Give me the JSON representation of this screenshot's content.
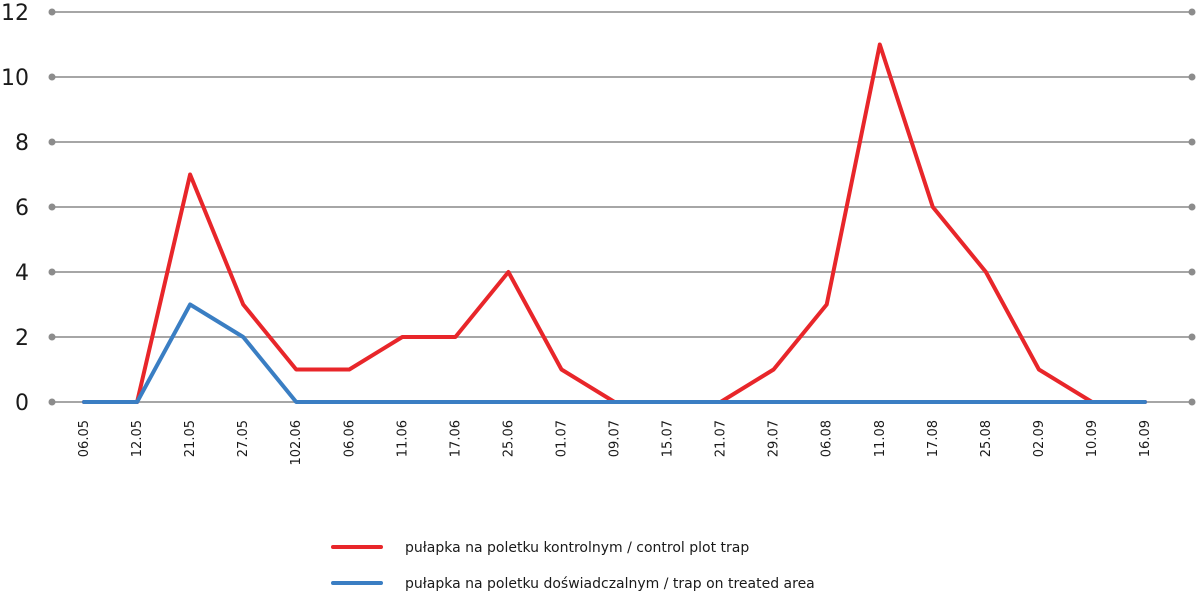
{
  "chart_data": {
    "type": "line",
    "x": [
      "06.05",
      "12.05",
      "21.05",
      "27.05",
      "102.06",
      "06.06",
      "11.06",
      "17.06",
      "25.06",
      "01.07",
      "09.07",
      "15.07",
      "21.07",
      "29.07",
      "06.08",
      "11.08",
      "17.08",
      "25.08",
      "02.09",
      "10.09",
      "16.09"
    ],
    "yticks": [
      0,
      2,
      4,
      6,
      8,
      10,
      12
    ],
    "ylim": [
      0,
      12
    ],
    "grid": true,
    "legend_position": "bottom-center",
    "series": [
      {
        "name": "pułapka na poletku kontrolnym / control plot trap",
        "color": "#e8262a",
        "values": [
          0,
          0,
          7,
          3,
          1,
          1,
          2,
          2,
          4,
          1,
          0,
          0,
          0,
          1,
          3,
          11,
          6,
          4,
          1,
          0,
          0
        ]
      },
      {
        "name": "pułapka na poletku doświadczalnym / trap on treated area",
        "color": "#3a7ec3",
        "values": [
          0,
          0,
          3,
          2,
          0,
          0,
          0,
          0,
          0,
          0,
          0,
          0,
          0,
          0,
          0,
          0,
          0,
          0,
          0,
          0,
          0
        ]
      }
    ]
  }
}
